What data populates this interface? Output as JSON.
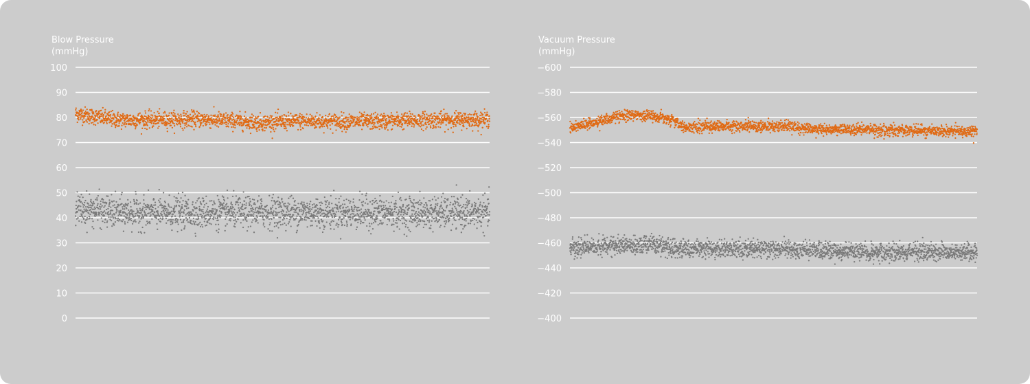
{
  "chart_data": [
    {
      "type": "scatter",
      "title": "",
      "ylabel": "Blow Pressure",
      "yunit": "(mmHg)",
      "yticks": [
        "100",
        "90",
        "80",
        "70",
        "60",
        "50",
        "40",
        "30",
        "20",
        "10",
        "0"
      ],
      "tick_values": [
        100,
        90,
        80,
        70,
        60,
        50,
        40,
        30,
        20,
        10,
        0
      ],
      "ylim": [
        0,
        100
      ],
      "grid": true,
      "series": [
        {
          "color": "#e06a14",
          "points_per_trace": 2200,
          "noise": 1.6,
          "trend": [
            [
              0,
              81.5
            ],
            [
              0.04,
              80.5
            ],
            [
              0.1,
              79
            ],
            [
              0.2,
              79
            ],
            [
              0.3,
              79.3
            ],
            [
              0.45,
              78
            ],
            [
              0.55,
              78.5
            ],
            [
              0.7,
              78.3
            ],
            [
              0.85,
              79
            ],
            [
              1,
              79.2
            ]
          ]
        },
        {
          "color": "#7a7a7a",
          "points_per_trace": 2200,
          "noise": 3.1,
          "trend": [
            [
              0,
              43.5
            ],
            [
              0.05,
              43
            ],
            [
              0.1,
              42
            ],
            [
              0.3,
              42
            ],
            [
              0.5,
              42.3
            ],
            [
              0.7,
              42
            ],
            [
              1,
              42
            ]
          ]
        }
      ]
    },
    {
      "type": "scatter",
      "title": "",
      "ylabel": "Vacuum Pressure",
      "yunit": "(mmHg)",
      "yticks": [
        "−600",
        "−580",
        "−560",
        "−540",
        "−520",
        "−500",
        "−480",
        "−460",
        "−440",
        "−420",
        "−400"
      ],
      "tick_values": [
        -600,
        -580,
        -560,
        -540,
        -520,
        -500,
        -480,
        -460,
        -440,
        -420,
        -400
      ],
      "ylim": [
        -600,
        -400
      ],
      "axis_inverted": true,
      "grid": true,
      "series": [
        {
          "color": "#e06a14",
          "points_per_trace": 2200,
          "noise": 2.2,
          "trend": [
            [
              0,
              -552
            ],
            [
              0.05,
              -555
            ],
            [
              0.1,
              -560
            ],
            [
              0.15,
              -562
            ],
            [
              0.2,
              -561
            ],
            [
              0.25,
              -558
            ],
            [
              0.28,
              -552
            ],
            [
              0.35,
              -553
            ],
            [
              0.5,
              -553
            ],
            [
              0.6,
              -551
            ],
            [
              0.75,
              -550
            ],
            [
              1,
              -549
            ]
          ]
        },
        {
          "color": "#7a7a7a",
          "points_per_trace": 2200,
          "noise": 3.5,
          "trend": [
            [
              0,
              -455
            ],
            [
              0.05,
              -457
            ],
            [
              0.1,
              -458
            ],
            [
              0.2,
              -459
            ],
            [
              0.25,
              -456
            ],
            [
              0.3,
              -455
            ],
            [
              0.5,
              -455
            ],
            [
              0.6,
              -454
            ],
            [
              0.75,
              -453
            ],
            [
              1,
              -452
            ]
          ]
        }
      ]
    }
  ]
}
